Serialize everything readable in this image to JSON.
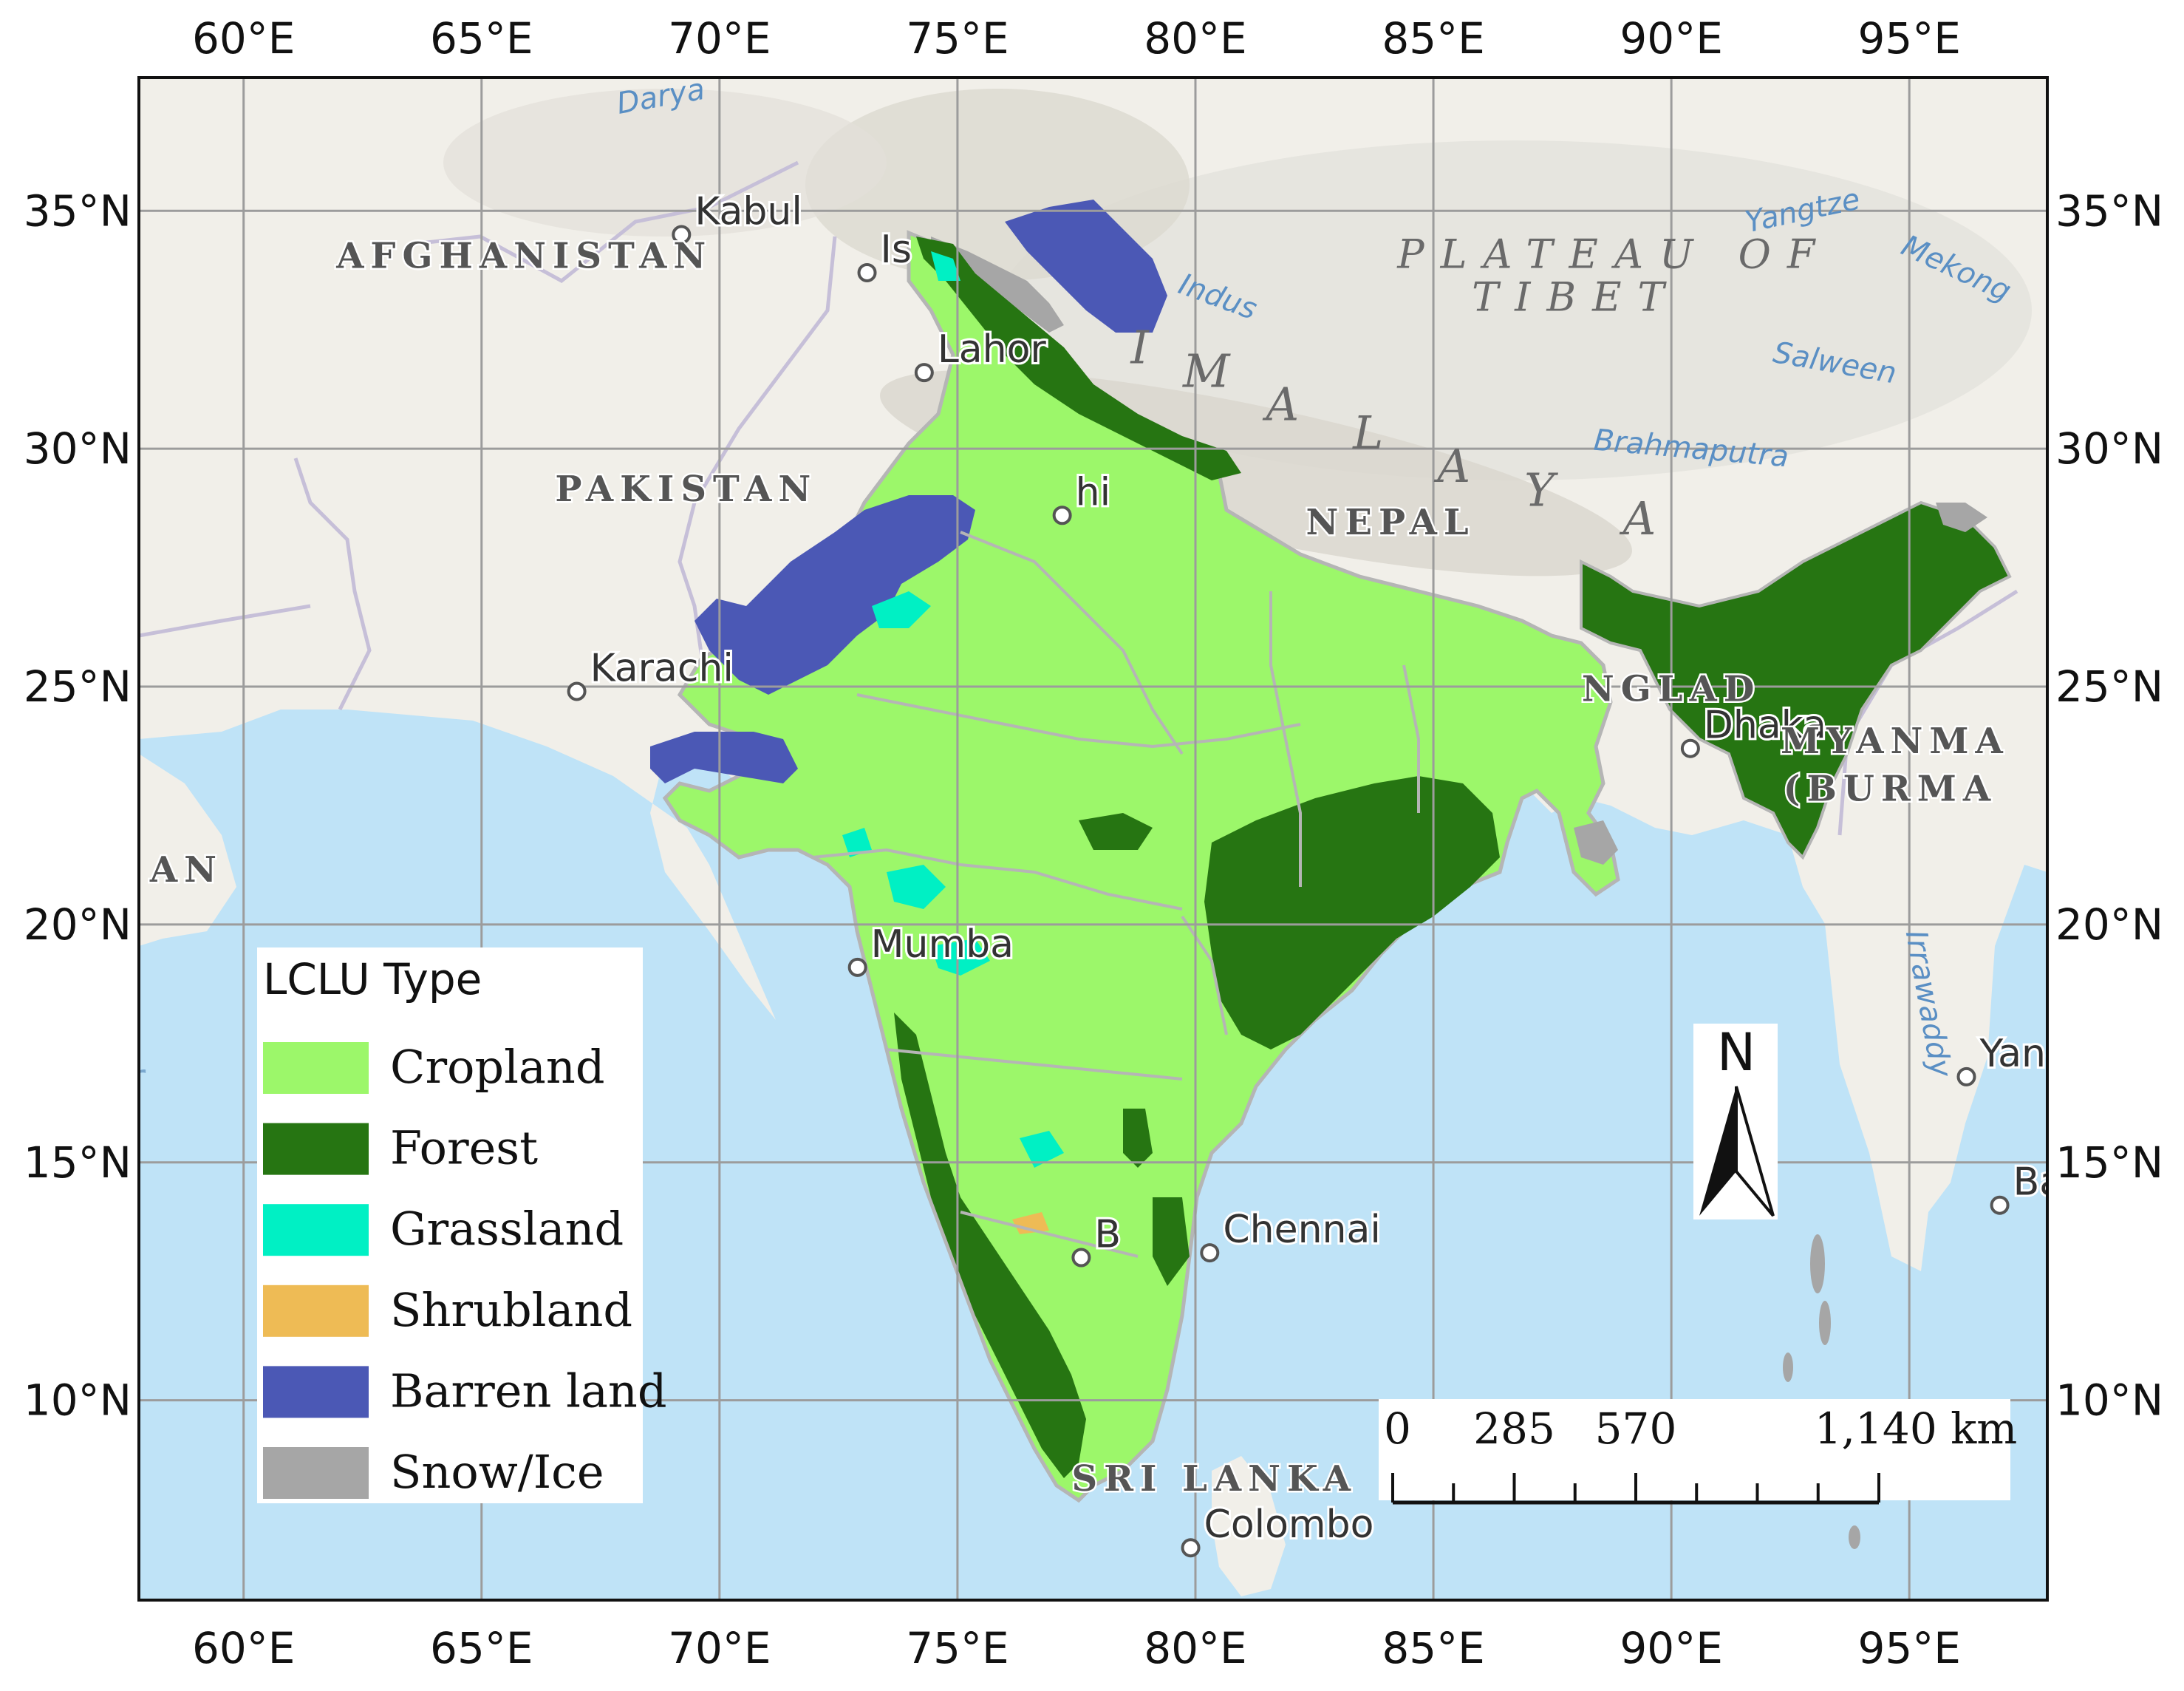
{
  "map": {
    "lon_ticks": [
      {
        "label": "60°E",
        "value": 60
      },
      {
        "label": "65°E",
        "value": 65
      },
      {
        "label": "70°E",
        "value": 70
      },
      {
        "label": "75°E",
        "value": 75
      },
      {
        "label": "80°E",
        "value": 80
      },
      {
        "label": "85°E",
        "value": 85
      },
      {
        "label": "90°E",
        "value": 90
      },
      {
        "label": "95°E",
        "value": 95
      }
    ],
    "lat_ticks": [
      {
        "label": "35°N",
        "value": 35
      },
      {
        "label": "30°N",
        "value": 30
      },
      {
        "label": "25°N",
        "value": 25
      },
      {
        "label": "20°N",
        "value": 20
      },
      {
        "label": "15°N",
        "value": 15
      },
      {
        "label": "10°N",
        "value": 10
      }
    ],
    "extent": {
      "lon_min": 57.8,
      "lon_max": 97.9,
      "lat_min": 5.8,
      "lat_max": 37.8
    },
    "places": [
      {
        "name": "Kabul",
        "lon": 69.2,
        "lat": 34.5
      },
      {
        "name": "Is",
        "lon": 73.1,
        "lat": 33.7
      },
      {
        "name": "Lahor",
        "lon": 74.3,
        "lat": 31.6
      },
      {
        "name": "Karachi",
        "lon": 67.0,
        "lat": 24.9
      },
      {
        "name": "Mumba",
        "lon": 72.9,
        "lat": 19.1
      },
      {
        "name": "Chennai",
        "lon": 80.3,
        "lat": 13.1
      },
      {
        "name": "Colombo",
        "lon": 79.9,
        "lat": 6.9
      },
      {
        "name": "Dhaka",
        "lon": 90.4,
        "lat": 23.7
      },
      {
        "name": "Yango",
        "lon": 96.2,
        "lat": 16.8
      },
      {
        "name": "Ban",
        "lon": 96.9,
        "lat": 14.1
      },
      {
        "name": "B",
        "lon": 77.6,
        "lat": 13.0
      },
      {
        "name": "hi",
        "lon": 77.2,
        "lat": 28.6
      }
    ],
    "countries": [
      {
        "name": "AFGHANISTAN",
        "lon": 65.9,
        "lat": 33.8
      },
      {
        "name": "PAKISTAN",
        "lon": 69.3,
        "lat": 28.9
      },
      {
        "name": "NEPAL",
        "lon": 84.1,
        "lat": 28.2
      },
      {
        "name": "NGLAD",
        "lon": 90.0,
        "lat": 24.7
      },
      {
        "name": "MYANMA",
        "lon": 94.7,
        "lat": 23.6
      },
      {
        "name": "(BURMA",
        "lon": 94.6,
        "lat": 22.6
      },
      {
        "name": "SRI LANKA",
        "lon": 80.4,
        "lat": 8.1
      },
      {
        "name": "AN",
        "lon": 58.8,
        "lat": 20.9
      }
    ],
    "regions": [
      {
        "name": "PLATEAU OF",
        "lon": 88.8,
        "lat": 33.8
      },
      {
        "name": "TIBET",
        "lon": 88.0,
        "lat": 32.9
      }
    ],
    "himalaya_letters": [
      "I",
      "M",
      "A",
      "L",
      "A",
      "Y",
      "A"
    ],
    "rivers": [
      {
        "name": "Indus",
        "lon": 80.4,
        "lat": 33.0
      },
      {
        "name": "Yangtze",
        "lon": 92.8,
        "lat": 34.8
      },
      {
        "name": "Mekong",
        "lon": 95.9,
        "lat": 33.6
      },
      {
        "name": "Salween",
        "lon": 93.4,
        "lat": 31.6
      },
      {
        "name": "Brahmaputra",
        "lon": 90.4,
        "lat": 29.8
      },
      {
        "name": "Irrawaddy",
        "lon": 95.2,
        "lat": 18.3
      },
      {
        "name": "Darya",
        "lon": 68.8,
        "lat": 37.2
      },
      {
        "name": "Ar",
        "lon": 57.5,
        "lat": 16.5
      }
    ]
  },
  "legend": {
    "title": "LCLU Type",
    "items": [
      {
        "label": "Cropland",
        "color": "#9cf76a"
      },
      {
        "label": "Forest",
        "color": "#267512"
      },
      {
        "label": "Grassland",
        "color": "#00f0c4"
      },
      {
        "label": "Shrubland",
        "color": "#eebb55"
      },
      {
        "label": "Barren land",
        "color": "#4b58b5"
      },
      {
        "label": "Snow/Ice",
        "color": "#a6a6a6"
      }
    ]
  },
  "scale_bar": {
    "labels": [
      "0",
      "285",
      "570",
      "1,140 km"
    ],
    "values": [
      0,
      285,
      570,
      1140
    ]
  },
  "north_arrow": {
    "label": "N"
  },
  "colors": {
    "ocean": "#bfe3f7",
    "land": "#f1efe9",
    "boundary": "#c6bfd8",
    "state_boundary": "#b5b5b5",
    "grid": "#9c9c9c",
    "tibet": "#e4e2dc"
  }
}
